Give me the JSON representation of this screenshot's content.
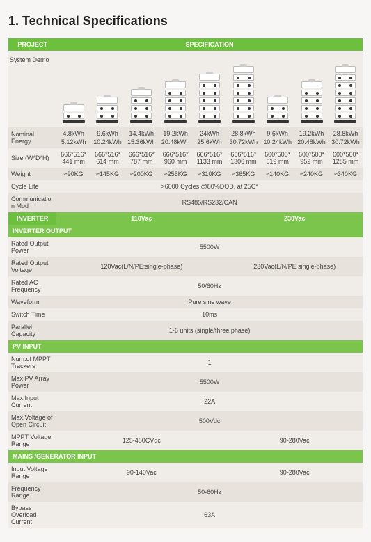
{
  "title": "1. Technical Specifications",
  "section_project": "PROJECT",
  "section_spec": "SPECIFICATION",
  "rows": {
    "system_demo": "System Demo",
    "nominal_energy": "Nominal Energy",
    "size": "Size (W*D*H)",
    "weight": "Weight",
    "cycle_life": "Cycle Life",
    "comm": "Communication Mod"
  },
  "stacks": [
    1,
    2,
    3,
    4,
    5,
    6,
    2,
    4,
    6
  ],
  "ne": [
    {
      "a": "4.8kWh",
      "b": "5.12kWh"
    },
    {
      "a": "9.6kWh",
      "b": "10.24kWh"
    },
    {
      "a": "14.4kWh",
      "b": "15.36kWh"
    },
    {
      "a": "19.2kWh",
      "b": "20.48kWh"
    },
    {
      "a": "24kWh",
      "b": "25.6kWh"
    },
    {
      "a": "28.8kWh",
      "b": "30.72kWh"
    },
    {
      "a": "9.6kWh",
      "b": "10.24kWh"
    },
    {
      "a": "19.2kWh",
      "b": "20.48kWh"
    },
    {
      "a": "28.8kWh",
      "b": "30.72kWh"
    }
  ],
  "size_vals": [
    "666*516*441 mm",
    "666*516*614 mm",
    "666*516*787 mm",
    "666*516*960 mm",
    "666*516*1133 mm",
    "666*516*1306 mm",
    "600*500*619 mm",
    "600*500*952 mm",
    "600*500*1285 mm"
  ],
  "weight_vals": [
    "≈90KG",
    "≈145KG",
    "≈200KG",
    "≈255KG",
    "≈310KG",
    "≈365KG",
    "≈140KG",
    "≈240KG",
    "≈340KG"
  ],
  "cycle_life_val": ">6000 Cycles @80%DOD, at 25C°",
  "comm_val": "RS485/RS232/CAN",
  "section_inverter": "INVERTER",
  "inv_110": "110Vac",
  "inv_230": "230Vac",
  "section_inv_out": "INVERTER OUTPUT",
  "inv_out": {
    "r_power_l": "Rated Output Power",
    "r_power_v": "5500W",
    "r_volt_l": "Rated Output Voltage",
    "r_volt_a": "120Vac(L/N/PE;single-phase)",
    "r_volt_b": "230Vac(L/N/PE single-phase)",
    "r_freq_l": "Rated AC Frequency",
    "r_freq_v": "50/60Hz",
    "wave_l": "Waveform",
    "wave_v": "Pure sine wave",
    "sw_l": "Switch Time",
    "sw_v": "10ms",
    "par_l": "Parallel Capacity",
    "par_v": "1-6 units (single/three phase)"
  },
  "section_pv": "PV INPUT",
  "pv": {
    "mppt_l": "Num.of MPPT Trackers",
    "mppt_v": "1",
    "maxpv_l": "Max.PV Array Power",
    "maxpv_v": "5500W",
    "maxcur_l": "Max.Input Current",
    "maxcur_v": "22A",
    "maxvoc_l": "Max.Voltage of Open Circuit",
    "maxvoc_v": "500Vdc",
    "mpptr_l": "MPPT Voltage Range",
    "mpptr_a": "125-450CVdc",
    "mpptr_b": "90-280Vac"
  },
  "section_mains": "MAINS /GENERATOR INPUT",
  "mains": {
    "ivr_l": "Input Voltage Range",
    "ivr_a": "90-140Vac",
    "ivr_b": "90-280Vac",
    "fr_l": "Frequency Range",
    "fr_v": "50-60Hz",
    "boc_l": "Bypass Overload Current",
    "boc_v": "63A"
  },
  "colors": {
    "header": "#6dbf3e",
    "row_bg": "#f0ece8",
    "row_alt": "#e7e2dc",
    "page_bg": "#f8f6f4"
  }
}
